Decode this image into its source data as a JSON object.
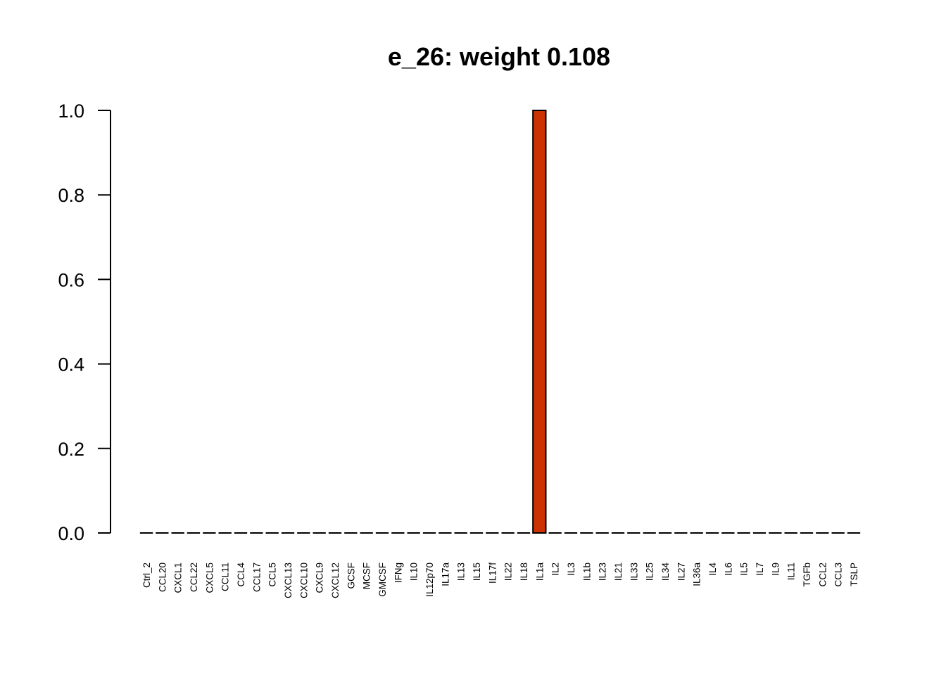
{
  "chart_data": {
    "type": "bar",
    "title": "e_26: weight 0.108",
    "xlabel": "",
    "ylabel": "",
    "ylim": [
      0,
      1
    ],
    "yticks": [
      "0.0",
      "0.2",
      "0.4",
      "0.6",
      "0.8",
      "1.0"
    ],
    "ytick_values": [
      0,
      0.2,
      0.4,
      0.6,
      0.8,
      1.0
    ],
    "categories": [
      "Ctrl_2",
      "CCL20",
      "CXCL1",
      "CCL22",
      "CXCL5",
      "CCL11",
      "CCL4",
      "CCL17",
      "CCL5",
      "CXCL13",
      "CXCL10",
      "CXCL9",
      "CXCL12",
      "GCSF",
      "MCSF",
      "GMCSF",
      "IFNg",
      "IL10",
      "IL12p70",
      "IL17a",
      "IL13",
      "IL15",
      "IL17f",
      "IL22",
      "IL18",
      "IL1a",
      "IL2",
      "IL3",
      "IL1b",
      "IL23",
      "IL21",
      "IL33",
      "IL25",
      "IL34",
      "IL27",
      "IL36a",
      "IL4",
      "IL6",
      "IL5",
      "IL7",
      "IL9",
      "IL11",
      "TGFb",
      "CCL2",
      "CCL3",
      "TSLP"
    ],
    "values": [
      0,
      0,
      0,
      0,
      0,
      0,
      0,
      0,
      0,
      0,
      0,
      0,
      0,
      0,
      0,
      0,
      0,
      0,
      0,
      0,
      0,
      0,
      0,
      0,
      0,
      1,
      0,
      0,
      0,
      0,
      0,
      0,
      0,
      0,
      0,
      0,
      0,
      0,
      0,
      0,
      0,
      0,
      0,
      0,
      0,
      0
    ],
    "bar_color": "#CC3300",
    "bar_edge_color": "#000000",
    "grid": false,
    "legend": "none"
  }
}
